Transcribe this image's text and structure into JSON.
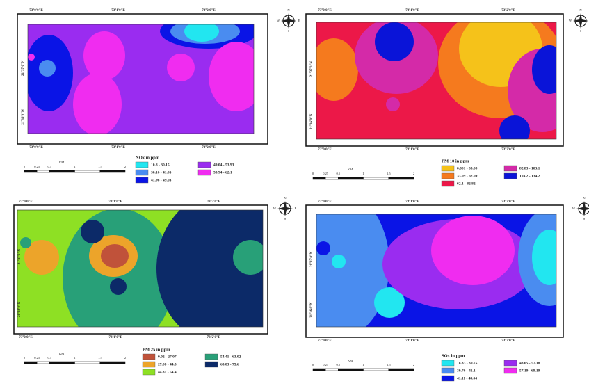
{
  "maps": [
    {
      "legend": {
        "title": "NOx in ppm",
        "items": [
          {
            "label": "10.8 - 30.15",
            "color": "#22e6f0"
          },
          {
            "label": "30.16 - 41.95",
            "color": "#4a8cf0"
          },
          {
            "label": "41.96 - 49.03",
            "color": "#0a14e6"
          },
          {
            "label": "49.04 - 53.93",
            "color": "#9a2cf0"
          },
          {
            "label": "53.94 - 62.1",
            "color": "#f02cf0"
          }
        ]
      },
      "x_labels": [
        "73°0'0\"E",
        "73°1'0\"E",
        "73°2'0\"E"
      ],
      "y_labels": [
        "21°37'0\"N",
        "21°36'0\"N"
      ]
    },
    {
      "legend": {
        "title": "PM 10 in ppm",
        "items": [
          {
            "label": "0.001 - 33.08",
            "color": "#f5c21a"
          },
          {
            "label": "33.09 - 62.09",
            "color": "#f57a1e"
          },
          {
            "label": "62.1 - 82.82",
            "color": "#ec1848"
          },
          {
            "label": "82.83 - 103.1",
            "color": "#d42aa8"
          },
          {
            "label": "103.2 - 134.2",
            "color": "#0a14d8"
          }
        ]
      },
      "x_labels": [
        "73°0'0\"E",
        "73°1'0\"E",
        "73°2'0\"E"
      ],
      "y_labels": [
        "21°37'0\"N",
        "21°36'0\"N"
      ]
    },
    {
      "legend": {
        "title": "PM 25 in ppm",
        "items": [
          {
            "label": "0.02 - 27.07",
            "color": "#c0523a"
          },
          {
            "label": "27.08 - 44.3",
            "color": "#eca42a"
          },
          {
            "label": "44.31 - 54.4",
            "color": "#8ee024"
          },
          {
            "label": "54.41 - 63.02",
            "color": "#28a078"
          },
          {
            "label": "63.03 - 75.6",
            "color": "#0c2a68"
          }
        ]
      },
      "x_labels": [
        "73°0'0\"E",
        "73°1'0\"E",
        "73°2'0\"E"
      ],
      "y_labels": [
        "21°37'0\"N",
        "21°36'0\"N"
      ]
    },
    {
      "legend": {
        "title": "SOx in ppm",
        "items": [
          {
            "label": "18.33 - 30.75",
            "color": "#22e6f0"
          },
          {
            "label": "30.76 - 41.1",
            "color": "#4a8cf0"
          },
          {
            "label": "41.11 - 48.04",
            "color": "#0a14e6"
          },
          {
            "label": "48.05 - 57.18",
            "color": "#9a2cf0"
          },
          {
            "label": "57.19 - 69.19",
            "color": "#f02cf0"
          }
        ]
      },
      "x_labels": [
        "73°0'0\"E",
        "73°1'0\"E",
        "73°2'0\"E"
      ],
      "y_labels": [
        "21°37'0\"N",
        "21°36'0\"N"
      ]
    }
  ],
  "scale_bar": {
    "unit": "KM",
    "ticks": [
      "0",
      "0.25",
      "0.5",
      "1",
      "1.5",
      "2"
    ]
  },
  "compass": [
    "N",
    "E",
    "S",
    "W"
  ]
}
